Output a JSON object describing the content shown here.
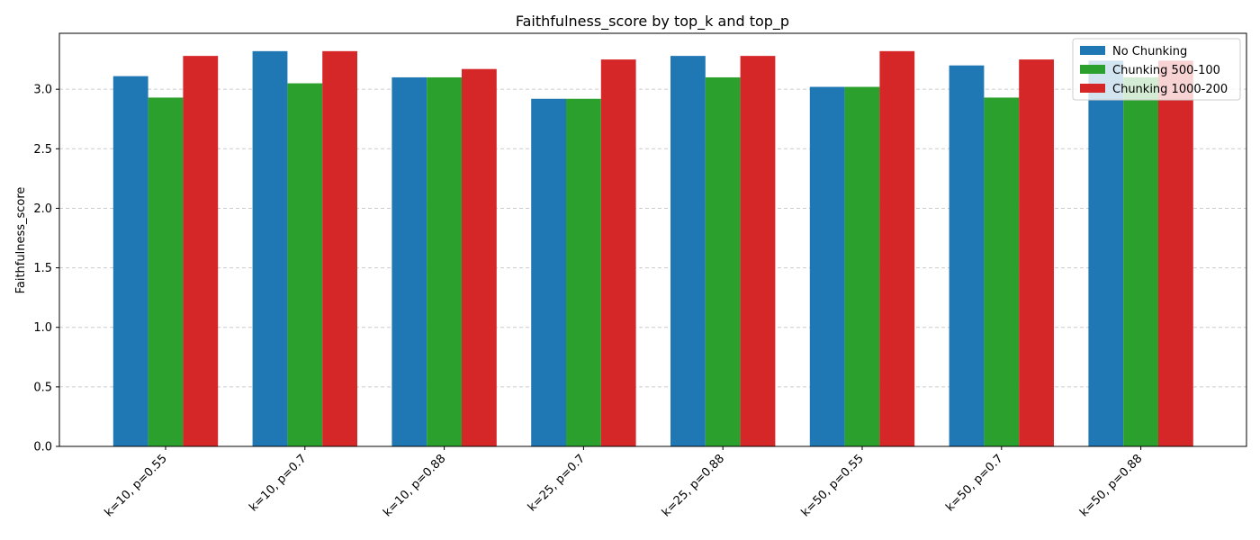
{
  "chart_data": {
    "type": "bar",
    "title": "Faithfulness_score by top_k and top_p",
    "xlabel": "",
    "ylabel": "Faithfulness_score",
    "ylim": [
      0,
      3.47
    ],
    "yticks": [
      "0.0",
      "0.5",
      "1.0",
      "1.5",
      "2.0",
      "2.5",
      "3.0"
    ],
    "grid": "y-dashed",
    "legend_position": "top-right",
    "categories": [
      "k=10, p=0.55",
      "k=10, p=0.7",
      "k=10, p=0.88",
      "k=25, p=0.7",
      "k=25, p=0.88",
      "k=50, p=0.55",
      "k=50, p=0.7",
      "k=50, p=0.88"
    ],
    "series": [
      {
        "name": "No Chunking",
        "color": "#1f77b4",
        "values": [
          3.11,
          3.32,
          3.1,
          2.92,
          3.28,
          3.02,
          3.2,
          3.24
        ]
      },
      {
        "name": "Chunking 500-100",
        "color": "#2ca02c",
        "values": [
          2.93,
          3.05,
          3.1,
          2.92,
          3.1,
          3.02,
          2.93,
          3.1
        ]
      },
      {
        "name": "Chunking 1000-200",
        "color": "#d62728",
        "values": [
          3.28,
          3.32,
          3.17,
          3.25,
          3.28,
          3.32,
          3.25,
          3.24
        ]
      }
    ]
  }
}
